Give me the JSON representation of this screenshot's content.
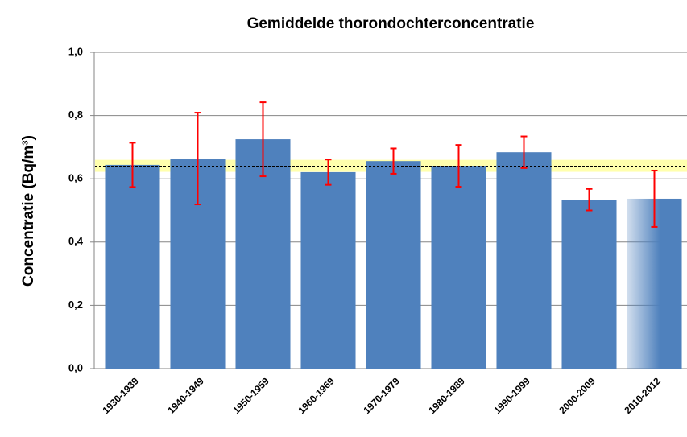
{
  "chart_data": {
    "type": "bar",
    "title": "Gemiddelde thorondochterconcentratie",
    "y_label": "Concentratie (Bq/m³)",
    "categories": [
      "1930-1939",
      "1940-1949",
      "1950-1959",
      "1960-1969",
      "1970-1979",
      "1980-1989",
      "1990-1999",
      "2000-2009",
      "2010-2012"
    ],
    "values": [
      0.644,
      0.664,
      0.725,
      0.621,
      0.656,
      0.641,
      0.684,
      0.534,
      0.537
    ],
    "errors": [
      0.07,
      0.145,
      0.117,
      0.04,
      0.04,
      0.066,
      0.05,
      0.034,
      0.089
    ],
    "color": "#4f81bd",
    "error_color": "#ff0000",
    "last_bar_faded": true,
    "mean_line": 0.64,
    "mean_band": [
      0.622,
      0.66
    ],
    "mean_band_color": "#ffff99",
    "ylim": [
      0,
      1
    ],
    "yticks": [
      {
        "value": 0,
        "label": "0,0"
      },
      {
        "value": 0.2,
        "label": "0,2"
      },
      {
        "value": 0.4,
        "label": "0,4"
      },
      {
        "value": 0.6,
        "label": "0,6"
      },
      {
        "value": 0.8,
        "label": "0,8"
      },
      {
        "value": 1,
        "label": "1,0"
      }
    ],
    "grid": true
  }
}
